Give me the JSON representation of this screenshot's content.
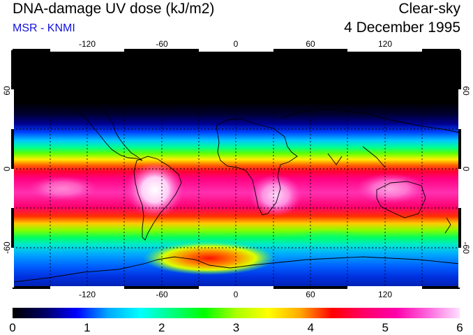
{
  "header": {
    "title": "DNA-damage UV dose (kJ/m2)",
    "subtitle": "MSR - KNMI",
    "condition": "Clear-sky",
    "date": "4 December 1995"
  },
  "map": {
    "projection": "equirectangular",
    "lon_range": [
      -180,
      180
    ],
    "lat_range": [
      -90,
      90
    ],
    "lon_ticks": [
      -120,
      -60,
      0,
      60,
      120
    ],
    "lon_labels": [
      "-120",
      "-60",
      "0",
      "60",
      "120"
    ],
    "lat_ticks": [
      60,
      0,
      -60
    ],
    "lat_labels": [
      "60",
      "0",
      "-60"
    ]
  },
  "colorbar": {
    "min": 0,
    "max": 6,
    "labels": [
      "0",
      "1",
      "2",
      "3",
      "4",
      "5",
      "6"
    ],
    "stops": [
      "#000000",
      "#000060",
      "#0000ff",
      "#00aaff",
      "#00ffff",
      "#00ff80",
      "#00ff00",
      "#aaff00",
      "#ffff00",
      "#ffaa00",
      "#ff0000",
      "#ff0066",
      "#ff00aa",
      "#ff66dd",
      "#ffe0ff"
    ]
  },
  "colors": {
    "background": "#ffffff",
    "subtitle": "#1111dd",
    "coast": "#000000",
    "grid": "#000000"
  }
}
